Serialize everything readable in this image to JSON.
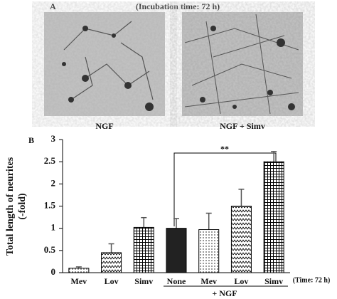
{
  "panel_a": {
    "label": "A",
    "title": "(Incubation time: 72 h)",
    "images": [
      {
        "caption": "NGF"
      },
      {
        "caption": "NGF + Simv"
      }
    ]
  },
  "chart_data": {
    "type": "bar",
    "panel_label": "B",
    "ylabel": [
      "Total length of neurites",
      "(-fold)"
    ],
    "categories": [
      "Mev",
      "Lov",
      "Simv",
      "None",
      "Mev",
      "Lov",
      "Simv"
    ],
    "values": [
      0.1,
      0.45,
      1.02,
      1.0,
      0.97,
      1.5,
      2.5
    ],
    "errors": [
      0.03,
      0.2,
      0.22,
      0.22,
      0.37,
      0.38,
      0.23
    ],
    "patterns": [
      "dots",
      "zigzag",
      "grid",
      "solid",
      "dots",
      "zigzag",
      "grid"
    ],
    "ylim": [
      0,
      3
    ],
    "yticks": [
      0,
      0.5,
      1,
      1.5,
      2,
      2.5,
      3
    ],
    "group_label": "+ NGF",
    "time_note": "(Time: 72 h)",
    "significance": "**"
  }
}
